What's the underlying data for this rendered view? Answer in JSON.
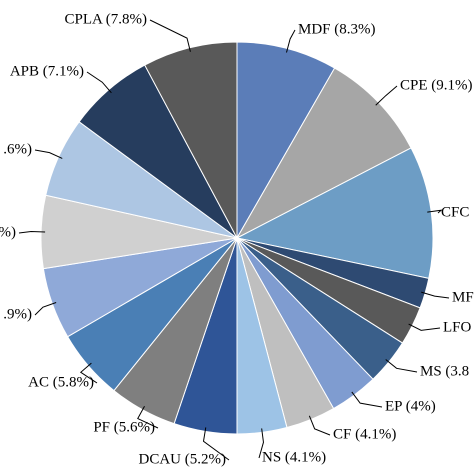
{
  "chart_data": {
    "type": "pie",
    "categories": [
      "MDF (8.3%)",
      "CPE (9.1%)",
      "CFC",
      "MF",
      "LFO",
      "MS (3.8",
      "EP (4%)",
      "CF (4.1%)",
      "NS (4.1%)",
      "DCAU (5.2%)",
      "PF (5.6%)",
      "AC (5.8%)",
      ".9%)",
      "%)",
      ".6%)",
      "APB (7.1%)",
      "CPLA (7.8%)"
    ],
    "values": [
      8.3,
      9.1,
      10.9,
      2.5,
      3.2,
      3.8,
      4,
      4.1,
      4.1,
      5.2,
      5.6,
      5.8,
      5.9,
      6.0,
      6.6,
      7.1,
      7.8
    ],
    "colors": [
      "#5b7db8",
      "#a6a6a6",
      "#6d9dc5",
      "#2e4a72",
      "#595959",
      "#3a5f8a",
      "#7f9cd0",
      "#bfbfbf",
      "#9dc3e6",
      "#2f5597",
      "#7f7f7f",
      "#4a7fb5",
      "#8fa9d8",
      "#d0d0d0",
      "#adc6e3",
      "#263d5e",
      "#595959"
    ]
  }
}
